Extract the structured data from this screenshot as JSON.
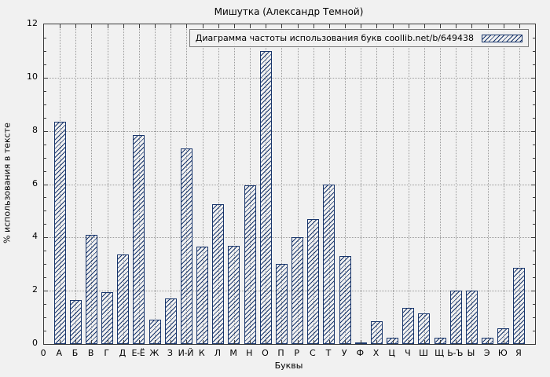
{
  "chart_data": {
    "type": "bar",
    "title": "Мишутка (Александр Темной)",
    "legend": "Диаграмма частоты использования букв coollib.net/b/649438",
    "xlabel": "Буквы",
    "ylabel": "% использования в тексте",
    "origin_label": "0",
    "ylim": [
      0,
      12
    ],
    "ytick_step": 2,
    "yticks": [
      0,
      2,
      4,
      6,
      8,
      10,
      12
    ],
    "categories": [
      "А",
      "Б",
      "В",
      "Г",
      "Д",
      "Е-Ё",
      "Ж",
      "З",
      "И-Й",
      "К",
      "Л",
      "М",
      "Н",
      "О",
      "П",
      "Р",
      "С",
      "Т",
      "У",
      "Ф",
      "Х",
      "Ц",
      "Ч",
      "Ш",
      "Щ",
      "Ь-Ъ",
      "Ы",
      "Э",
      "Ю",
      "Я"
    ],
    "values": [
      8.35,
      1.65,
      4.1,
      1.95,
      3.35,
      7.85,
      0.9,
      1.7,
      7.35,
      3.65,
      5.25,
      3.7,
      5.95,
      11.0,
      3.0,
      4.0,
      4.7,
      6.0,
      3.3,
      0.05,
      0.85,
      0.25,
      1.35,
      1.15,
      0.25,
      2.0,
      2.0,
      0.25,
      0.6,
      2.85
    ],
    "bar_color": "#18356b",
    "background": "#f1f1f1",
    "grid": true,
    "legend_position": "top-right"
  }
}
